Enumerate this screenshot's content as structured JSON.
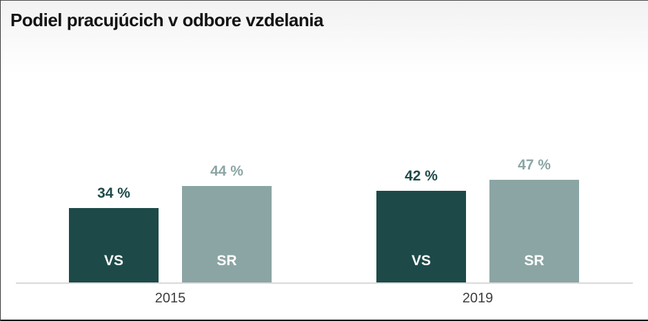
{
  "header": {
    "title": "Podiel pracujúcich v odbore vzdelania"
  },
  "chart_data": {
    "type": "bar",
    "title": "Podiel pracujúcich v odbore vzdelania",
    "categories": [
      "2015",
      "2019"
    ],
    "series": [
      {
        "name": "VS",
        "values": [
          34,
          42
        ],
        "color": "#1d4a48",
        "value_labels": [
          "34 %",
          "42 %"
        ]
      },
      {
        "name": "SR",
        "values": [
          44,
          47
        ],
        "color": "#8ba5a4",
        "value_labels": [
          "44 %",
          "47 %"
        ]
      }
    ],
    "value_label_format": "{v} %",
    "unit": "%",
    "ylim": [
      0,
      100
    ],
    "grid": false,
    "legend": "none",
    "bar_label_position": "inside-bottom",
    "bar_label_color": "#ffffff"
  },
  "colors": {
    "vs_bar": "#1d4a48",
    "sr_bar": "#8ba5a4",
    "axis_line": "#d9d9d9",
    "category_label": "#3d3d3d",
    "title_text": "#141414",
    "header_gradient_top": "#f2f2f2",
    "header_gradient_bottom": "#ffffff",
    "bottom_border": "#111111"
  }
}
